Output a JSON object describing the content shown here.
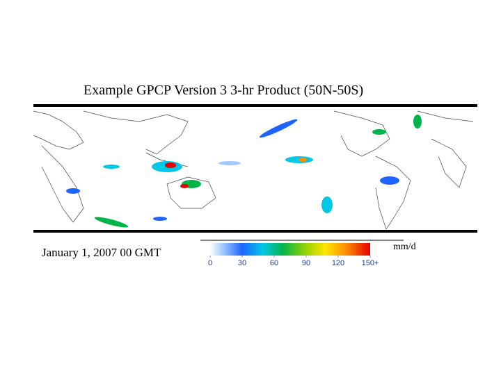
{
  "title": "Example GPCP Version 3   3-hr Product (50N-50S)",
  "timestamp": "January 1, 2007 00 GMT",
  "colorbar": {
    "min": 0,
    "max": 150,
    "unit": "mm/d",
    "ticks": [
      0,
      30,
      60,
      90,
      120,
      {
        "value": 150,
        "label": "150+"
      }
    ]
  }
}
